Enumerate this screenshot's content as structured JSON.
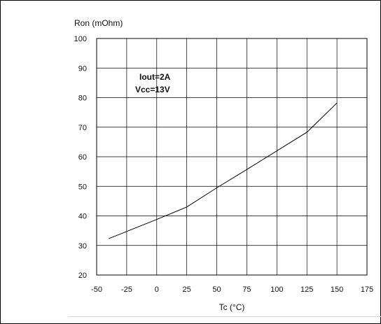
{
  "chart_data": {
    "type": "line",
    "title": "",
    "ylabel": "Ron (mOhm)",
    "xlabel": "Tc (°C)",
    "xlim": [
      -50,
      175
    ],
    "ylim": [
      20,
      100
    ],
    "x_ticks": [
      -50,
      -25,
      0,
      25,
      50,
      75,
      100,
      125,
      150,
      175
    ],
    "y_ticks": [
      20,
      30,
      40,
      50,
      60,
      70,
      80,
      90,
      100
    ],
    "grid": true,
    "annotations": [
      "Iout=2A",
      "Vcc=13V"
    ],
    "series": [
      {
        "x": [
          -40,
          0,
          25,
          50,
          75,
          100,
          125,
          150
        ],
        "y": [
          32.3,
          38.8,
          43,
          49.5,
          55.7,
          62,
          68.3,
          78.2
        ]
      }
    ]
  }
}
